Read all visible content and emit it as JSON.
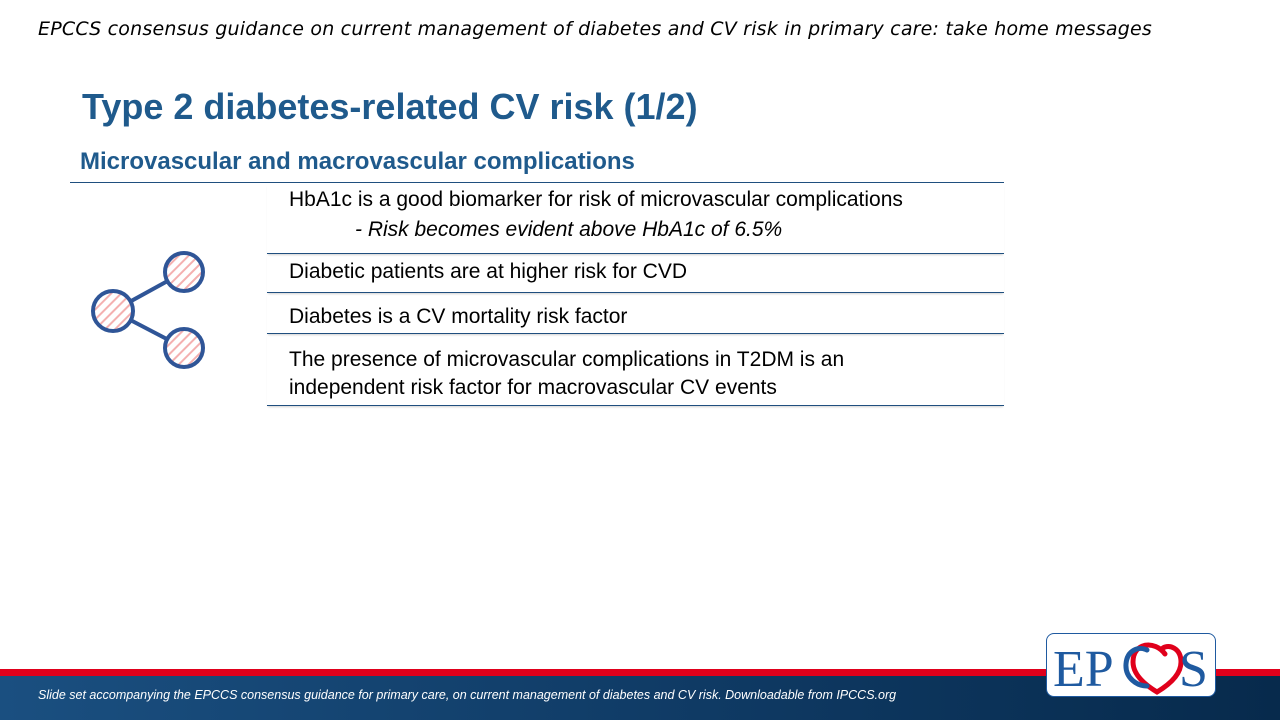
{
  "header": {
    "text": "EPCCS consensus guidance on current management of diabetes and CV risk in primary care: take home messages"
  },
  "slide": {
    "title": "Type 2 diabetes-related CV risk (1/2)",
    "subtitle": "Microvascular and macrovascular complications"
  },
  "icon": {
    "name": "share-network-icon",
    "stroke": "#2f5597",
    "fill_hatch": "#f4b8b8"
  },
  "messages": [
    {
      "text": "HbA1c is a good biomarker for risk of microvascular complications",
      "sub": "- Risk becomes evident above HbA1c of 6.5%"
    },
    {
      "text": "Diabetic patients are at higher risk for CVD"
    },
    {
      "text": "Diabetes is a CV mortality risk factor"
    },
    {
      "line1": "The presence of microvascular complications in T2DM is an",
      "line2": "independent risk factor for macrovascular CV events"
    }
  ],
  "footer": {
    "text": "Slide set accompanying  the EPCCS consensus guidance for primary care, on current management of diabetes and CV risk. Downloadable  from  IPCCS.org"
  },
  "logo": {
    "letters_left": "EP",
    "letters_right": "S",
    "alt": "EPCCS logo"
  },
  "colors": {
    "title_blue": "#1f5a8c",
    "footer_red": "#e0001b",
    "footer_blue": "#0f3a64"
  }
}
